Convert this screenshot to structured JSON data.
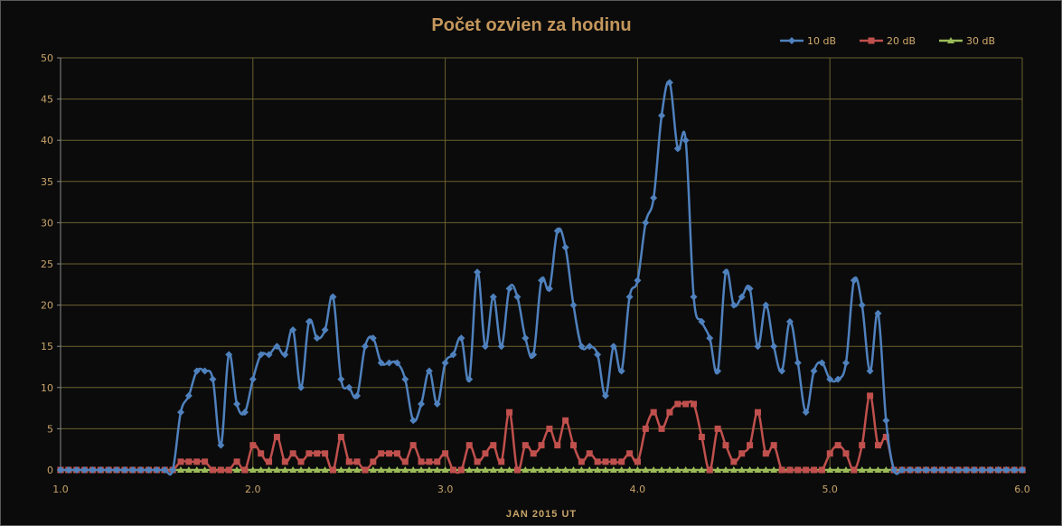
{
  "chart_data": {
    "type": "line",
    "title": "Počet ozvien za hodinu",
    "xlabel": "JAN 2015 UT",
    "ylabel": "",
    "xlim": [
      1.0,
      6.0
    ],
    "ylim": [
      0,
      50
    ],
    "x_ticks": [
      "1.0",
      "2.0",
      "3.0",
      "4.0",
      "5.0",
      "6.0"
    ],
    "y_ticks": [
      "0",
      "5",
      "10",
      "15",
      "20",
      "25",
      "30",
      "35",
      "40",
      "45",
      "50"
    ],
    "grid": true,
    "legend_position": "top-right",
    "x_start": 1.0,
    "x_step": 0.04167,
    "series": [
      {
        "name": "10 dB",
        "color": "#4f81bd",
        "marker": "diamond",
        "values": [
          0,
          0,
          0,
          0,
          0,
          0,
          0,
          0,
          0,
          0,
          0,
          0,
          0,
          0,
          0,
          7,
          9,
          12,
          12,
          11,
          3,
          14,
          8,
          7,
          11,
          14,
          14,
          15,
          14,
          17,
          10,
          18,
          16,
          17,
          21,
          11,
          10,
          9,
          15,
          16,
          13,
          13,
          13,
          11,
          6,
          8,
          12,
          8,
          13,
          14,
          16,
          11,
          24,
          15,
          21,
          15,
          22,
          21,
          16,
          14,
          23,
          22,
          29,
          27,
          20,
          15,
          15,
          14,
          9,
          15,
          12,
          21,
          23,
          30,
          33,
          43,
          47,
          39,
          40,
          21,
          18,
          16,
          12,
          24,
          20,
          21,
          22,
          15,
          20,
          15,
          12,
          18,
          13,
          7,
          12,
          13,
          11,
          11,
          13,
          23,
          20,
          12,
          19,
          6,
          0,
          0,
          0,
          0,
          0,
          0,
          0,
          0,
          0,
          0,
          0,
          0,
          0,
          0,
          0,
          0,
          0
        ]
      },
      {
        "name": "20 dB",
        "color": "#c0504d",
        "marker": "square",
        "values": [
          0,
          0,
          0,
          0,
          0,
          0,
          0,
          0,
          0,
          0,
          0,
          0,
          0,
          0,
          0,
          1,
          1,
          1,
          1,
          0,
          0,
          0,
          1,
          0,
          3,
          2,
          1,
          4,
          1,
          2,
          1,
          2,
          2,
          2,
          0,
          4,
          1,
          1,
          0,
          1,
          2,
          2,
          2,
          1,
          3,
          1,
          1,
          1,
          2,
          0,
          0,
          3,
          1,
          2,
          3,
          1,
          7,
          0,
          3,
          2,
          3,
          5,
          3,
          6,
          3,
          1,
          2,
          1,
          1,
          1,
          1,
          2,
          1,
          5,
          7,
          5,
          7,
          8,
          8,
          8,
          4,
          0,
          5,
          3,
          1,
          2,
          3,
          7,
          2,
          3,
          0,
          0,
          0,
          0,
          0,
          0,
          2,
          3,
          2,
          0,
          3,
          9,
          3,
          4,
          0,
          0,
          0,
          0,
          0,
          0,
          0,
          0,
          0,
          0,
          0,
          0,
          0,
          0,
          0,
          0,
          0
        ]
      },
      {
        "name": "30 dB",
        "color": "#9bbb59",
        "marker": "triangle",
        "values": [
          0,
          0,
          0,
          0,
          0,
          0,
          0,
          0,
          0,
          0,
          0,
          0,
          0,
          0,
          0,
          0,
          0,
          0,
          0,
          0,
          0,
          0,
          0,
          0,
          0,
          0,
          0,
          0,
          0,
          0,
          0,
          0,
          0,
          0,
          0,
          0,
          0,
          0,
          0,
          0,
          0,
          0,
          0,
          0,
          0,
          0,
          0,
          0,
          0,
          0,
          0,
          0,
          0,
          0,
          0,
          0,
          0,
          0,
          0,
          0,
          0,
          0,
          0,
          0,
          0,
          0,
          0,
          0,
          0,
          0,
          0,
          0,
          0,
          0,
          0,
          0,
          0,
          0,
          0,
          0,
          0,
          0,
          0,
          0,
          0,
          0,
          0,
          0,
          0,
          0,
          0,
          0,
          0,
          0,
          0,
          0,
          0,
          0,
          0,
          0,
          0,
          0,
          0,
          0,
          0,
          0,
          0,
          0,
          0,
          0,
          0,
          0,
          0,
          0,
          0,
          0,
          0,
          0,
          0,
          0,
          0
        ]
      }
    ]
  },
  "colors": {
    "axis_text": "#c9a46a",
    "title": "#c4975c",
    "grid": "#6b6130",
    "background": "#0b0b0b"
  }
}
